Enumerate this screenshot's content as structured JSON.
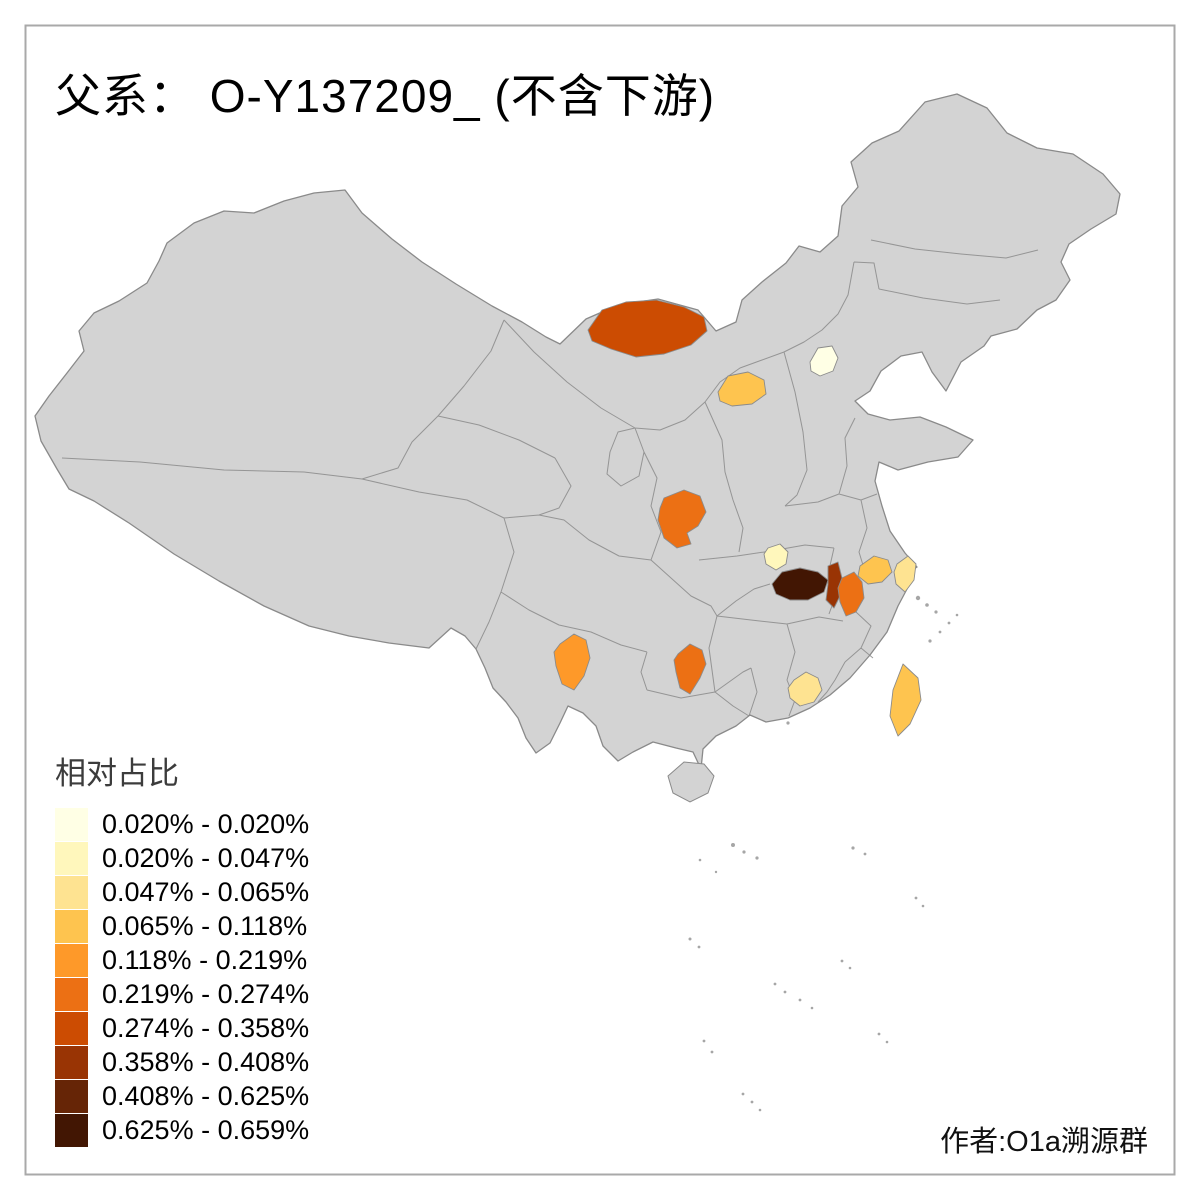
{
  "title": "父系： O-Y137209_ (不含下游)",
  "credit": "作者:O1a溯源群",
  "legend": {
    "title": "相对占比",
    "bins": [
      {
        "label": "0.020% - 0.020%",
        "color": "#FFFFE5"
      },
      {
        "label": "0.020% - 0.047%",
        "color": "#FFF7BC"
      },
      {
        "label": "0.047% - 0.065%",
        "color": "#FEE391"
      },
      {
        "label": "0.065% - 0.118%",
        "color": "#FEC44F"
      },
      {
        "label": "0.118% - 0.219%",
        "color": "#FE9929"
      },
      {
        "label": "0.219% - 0.274%",
        "color": "#EC7014"
      },
      {
        "label": "0.274% - 0.358%",
        "color": "#CC4C02"
      },
      {
        "label": "0.358% - 0.408%",
        "color": "#993404"
      },
      {
        "label": "0.408% - 0.625%",
        "color": "#662506"
      },
      {
        "label": "0.625% - 0.659%",
        "color": "#421603"
      }
    ]
  },
  "map": {
    "base_fill": "#D3D3D3",
    "border_color": "#8A8A8A",
    "background": "#FFFFFF",
    "regions": [
      {
        "id": "region-inner-mongolia",
        "bin": 6
      },
      {
        "id": "region-shanxi",
        "bin": 3
      },
      {
        "id": "region-beijing",
        "bin": 0
      },
      {
        "id": "region-shaanxi",
        "bin": 5
      },
      {
        "id": "region-nw-hubei",
        "bin": 1
      },
      {
        "id": "region-w-hubei",
        "bin": 9
      },
      {
        "id": "region-e-hubei",
        "bin": 7
      },
      {
        "id": "region-anhui",
        "bin": 5
      },
      {
        "id": "region-jiangsu",
        "bin": 3
      },
      {
        "id": "region-shanghai",
        "bin": 2
      },
      {
        "id": "region-yunnan",
        "bin": 4
      },
      {
        "id": "region-guizhou",
        "bin": 5
      },
      {
        "id": "region-guangdong",
        "bin": 2
      },
      {
        "id": "region-taiwan",
        "bin": 3
      }
    ]
  }
}
